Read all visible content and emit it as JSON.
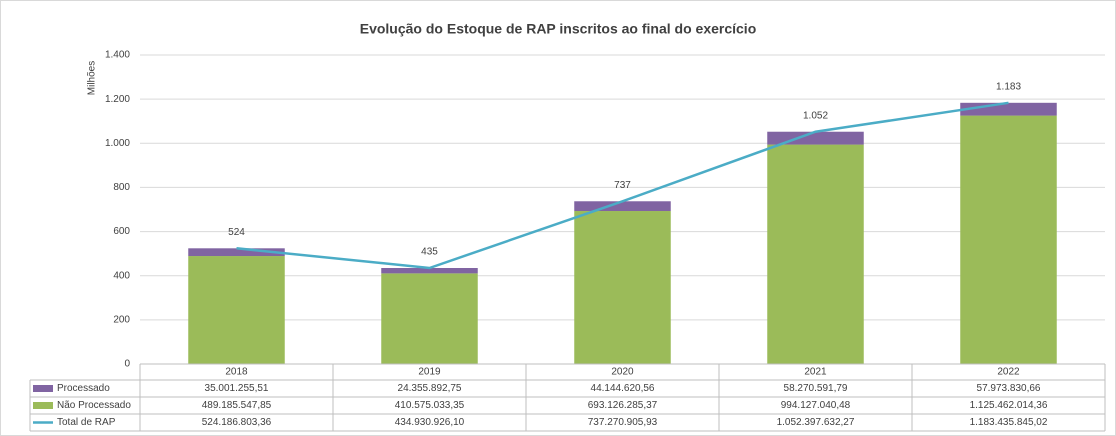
{
  "chart_data": {
    "type": "stacked-bar-line",
    "title": "Evolução do Estoque de RAP inscritos ao final do exercício",
    "y_label": "Milhões",
    "categories": [
      "2018",
      "2019",
      "2020",
      "2021",
      "2022"
    ],
    "ylim": [
      0,
      1400
    ],
    "yticks": [
      0,
      200,
      400,
      600,
      800,
      {
        "value": 1000,
        "label": "1.000"
      },
      {
        "value": 1200,
        "label": "1.200"
      },
      {
        "value": 1400,
        "label": "1.400"
      }
    ],
    "grid": true,
    "series": [
      {
        "name": "Processado",
        "color": "#8064a2",
        "kind": "bar",
        "values": [
          35.00125551,
          24.35589275,
          44.14462056,
          58.27059179,
          57.97383066
        ],
        "value_labels": [
          "35.001.255,51",
          "24.355.892,75",
          "44.144.620,56",
          "58.270.591,79",
          "57.973.830,66"
        ]
      },
      {
        "name": "Não Processado",
        "color": "#9bbb59",
        "kind": "bar",
        "values": [
          489.18554785,
          410.57503335,
          693.12628537,
          994.12704048,
          1125.46201436
        ],
        "value_labels": [
          "489.185.547,85",
          "410.575.033,35",
          "693.126.285,37",
          "994.127.040,48",
          "1.125.462.014,36"
        ]
      },
      {
        "name": "Total de RAP",
        "color": "#4bacc6",
        "kind": "line",
        "values": [
          524.18680336,
          434.9309261,
          737.27090593,
          1052.39763227,
          1183.43584502
        ],
        "value_labels": [
          "524.186.803,36",
          "434.930.926,10",
          "737.270.905,93",
          "1.052.397.632,27",
          "1.183.435.845,02"
        ],
        "point_labels": [
          "524",
          "435",
          "737",
          "1.052",
          "1.183"
        ]
      }
    ]
  }
}
